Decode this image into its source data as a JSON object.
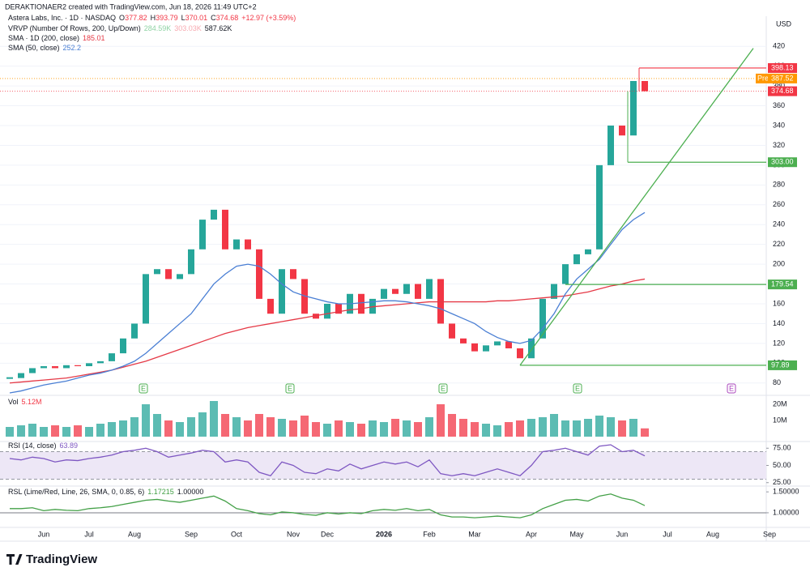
{
  "header": {
    "credit": "DERAKTIONAER2 created with TradingView.com, Jun 18, 2026 11:49 UTC+2",
    "currency": "USD",
    "brand": "TradingView"
  },
  "chart_data": [
    {
      "type": "price",
      "title": "Astera Labs, Inc. · 1D · NASDAQ",
      "quote": [
        {
          "label": "O",
          "value": "377.82"
        },
        {
          "label": "H",
          "value": "393.79"
        },
        {
          "label": "L",
          "value": "370.01"
        },
        {
          "label": "C",
          "value": "374.68"
        }
      ],
      "change": "+12.97 (+3.59%)",
      "indicators": [
        {
          "name": "VRVP (Number Of Rows, 200, Up/Down)",
          "values": [
            "284.59K",
            "303.03K",
            "587.62K"
          ],
          "colors": [
            "#8fd3a4",
            "#f7a9b0",
            "#131722"
          ]
        }
      ],
      "categories": [
        null,
        null,
        null,
        "Jun",
        null,
        null,
        null,
        "Jul",
        null,
        null,
        null,
        "Aug",
        null,
        null,
        null,
        null,
        "Sep",
        null,
        null,
        null,
        "Oct",
        null,
        null,
        null,
        null,
        "Nov",
        null,
        null,
        "Dec",
        null,
        null,
        null,
        null,
        "2026",
        null,
        null,
        null,
        "Feb",
        null,
        null,
        null,
        "Mar",
        null,
        null,
        null,
        null,
        "Apr",
        null,
        null,
        null,
        "May",
        null,
        null,
        null,
        "Jun",
        null,
        null,
        null,
        "Jul",
        null,
        null,
        null,
        "Aug",
        null,
        null,
        null,
        null,
        "Sep"
      ],
      "series": [
        {
          "name": "Astera Labs, Inc. · 1D · NASDAQ",
          "up_color": "#26a69a",
          "down_color": "#f23645",
          "values": [
            85,
            90,
            95,
            97,
            95,
            98,
            97,
            100,
            102,
            110,
            125,
            140,
            190,
            195,
            185,
            190,
            215,
            245,
            255,
            215,
            225,
            215,
            165,
            150,
            195,
            185,
            150,
            145,
            160,
            150,
            170,
            150,
            165,
            175,
            170,
            180,
            165,
            185,
            140,
            125,
            120,
            112,
            118,
            122,
            115,
            105,
            125,
            165,
            180,
            200,
            210,
            215,
            300,
            340,
            330,
            385,
            374.68,
            null,
            null,
            null,
            null,
            null,
            null,
            null,
            null,
            null,
            null,
            null
          ]
        },
        {
          "name": "SMA · 1D (200, close)",
          "color": "#e53946",
          "values": [
            80,
            81,
            82,
            83,
            84,
            85,
            87,
            89,
            91,
            93,
            96,
            99,
            102,
            106,
            110,
            114,
            118,
            122,
            126,
            130,
            133,
            136,
            138,
            140,
            142,
            144,
            146,
            148,
            150,
            152,
            154,
            155,
            157,
            158,
            159,
            160,
            161,
            162,
            162,
            162,
            162,
            162,
            162,
            163,
            163,
            164,
            165,
            166,
            167,
            168,
            170,
            172,
            175,
            178,
            180,
            183,
            185.01,
            null,
            null,
            null,
            null,
            null,
            null,
            null,
            null,
            null,
            null,
            null
          ]
        },
        {
          "name": "SMA (50, close)",
          "color": "#4a7fd4",
          "values": [
            70,
            72,
            75,
            78,
            80,
            82,
            85,
            88,
            90,
            93,
            97,
            102,
            110,
            120,
            130,
            140,
            150,
            165,
            180,
            190,
            198,
            200,
            198,
            190,
            180,
            172,
            168,
            165,
            162,
            160,
            160,
            161,
            162,
            163,
            163,
            162,
            160,
            158,
            155,
            150,
            145,
            140,
            132,
            126,
            122,
            120,
            123,
            135,
            150,
            170,
            185,
            195,
            205,
            220,
            235,
            245,
            252.2,
            null,
            null,
            null,
            null,
            null,
            null,
            null,
            null,
            null,
            null,
            null
          ]
        }
      ],
      "levels": [
        {
          "value": 398.13,
          "color": "#f23645"
        },
        {
          "value": 387.52,
          "tag": "Pre",
          "color": "#ff9800"
        },
        {
          "value": 374.68,
          "color": "#f23645"
        },
        {
          "value": 303,
          "label": "303.00",
          "color": "#4caf50"
        },
        {
          "value": 179.54,
          "color": "#4caf50"
        },
        {
          "value": 97.89,
          "color": "#4caf50"
        }
      ],
      "trendline": {
        "color": "#4caf50",
        "values": [
          97.89,
          418
        ]
      },
      "earnings": [
        "E",
        "E",
        "E",
        "E",
        "E"
      ],
      "ylim": [
        70,
        430
      ],
      "yticks": [
        80,
        100,
        120,
        140,
        160,
        180,
        200,
        220,
        240,
        260,
        280,
        300,
        320,
        340,
        360,
        380,
        400,
        420
      ]
    },
    {
      "type": "volume",
      "title": "Vol",
      "last": "5.12M",
      "up_color": "#26a69a",
      "down_color": "#f23645",
      "values": [
        6,
        7,
        8,
        6,
        7,
        6,
        7,
        6,
        8,
        9,
        10,
        12,
        20,
        14,
        10,
        9,
        12,
        15,
        22,
        14,
        12,
        10,
        14,
        12,
        11,
        10,
        13,
        9,
        8,
        10,
        9,
        8,
        10,
        9,
        11,
        10,
        9,
        12,
        20,
        14,
        11,
        9,
        8,
        7,
        9,
        10,
        11,
        12,
        14,
        10,
        10,
        11,
        13,
        12,
        10,
        11,
        5.12,
        null,
        null,
        null,
        null,
        null,
        null,
        null,
        null,
        null,
        null,
        null
      ],
      "ylim": [
        0,
        25
      ],
      "yticks": [
        {
          "value": 10,
          "label": "10M"
        },
        {
          "value": 20,
          "label": "20M"
        }
      ]
    },
    {
      "type": "oscillator",
      "title": "RSI (14, close)",
      "color": "#7e57c2",
      "band": [
        30,
        70
      ],
      "band_color": "#ede7f6",
      "values": [
        60,
        58,
        62,
        60,
        55,
        58,
        57,
        60,
        62,
        65,
        70,
        72,
        75,
        70,
        62,
        65,
        68,
        72,
        70,
        55,
        58,
        55,
        40,
        35,
        55,
        50,
        40,
        38,
        45,
        42,
        52,
        45,
        50,
        55,
        52,
        55,
        48,
        58,
        38,
        35,
        38,
        35,
        40,
        45,
        40,
        35,
        50,
        70,
        72,
        75,
        70,
        65,
        78,
        80,
        70,
        72,
        63.89,
        null,
        null,
        null,
        null,
        null,
        null,
        null,
        null,
        null,
        null,
        null
      ],
      "ylim": [
        20,
        80
      ],
      "yticks": [
        {
          "value": 25,
          "label": "25.00"
        },
        {
          "value": 50,
          "label": "50.00"
        },
        {
          "value": 75,
          "label": "75.00"
        }
      ]
    },
    {
      "type": "oscillator",
      "title": "RSL (Lime/Red, Line, 26, SMA, 0, 0.85, 6)",
      "color": "#43a047",
      "reference": {
        "value": 1,
        "label": "1.00000"
      },
      "last_label": "1.17215",
      "values": [
        1.1,
        1.1,
        1.12,
        1.05,
        1.08,
        1.06,
        1.05,
        1.1,
        1.12,
        1.15,
        1.2,
        1.25,
        1.3,
        1.32,
        1.28,
        1.25,
        1.3,
        1.35,
        1.4,
        1.28,
        1.1,
        1.05,
        0.98,
        0.95,
        1.02,
        1.0,
        0.96,
        0.94,
        1.0,
        0.97,
        1.0,
        0.98,
        1.05,
        1.08,
        1.06,
        1.1,
        1.05,
        1.08,
        0.95,
        0.9,
        0.9,
        0.88,
        0.9,
        0.92,
        0.9,
        0.88,
        0.95,
        1.1,
        1.2,
        1.3,
        1.32,
        1.28,
        1.4,
        1.45,
        1.35,
        1.3,
        1.17215,
        null,
        null,
        null,
        null,
        null,
        null,
        null,
        null,
        null,
        null,
        null
      ],
      "ylim": [
        0.65,
        1.6
      ],
      "yticks": [
        {
          "value": 1,
          "label": "1.00000"
        },
        {
          "value": 1.5,
          "label": "1.50000"
        }
      ]
    }
  ]
}
